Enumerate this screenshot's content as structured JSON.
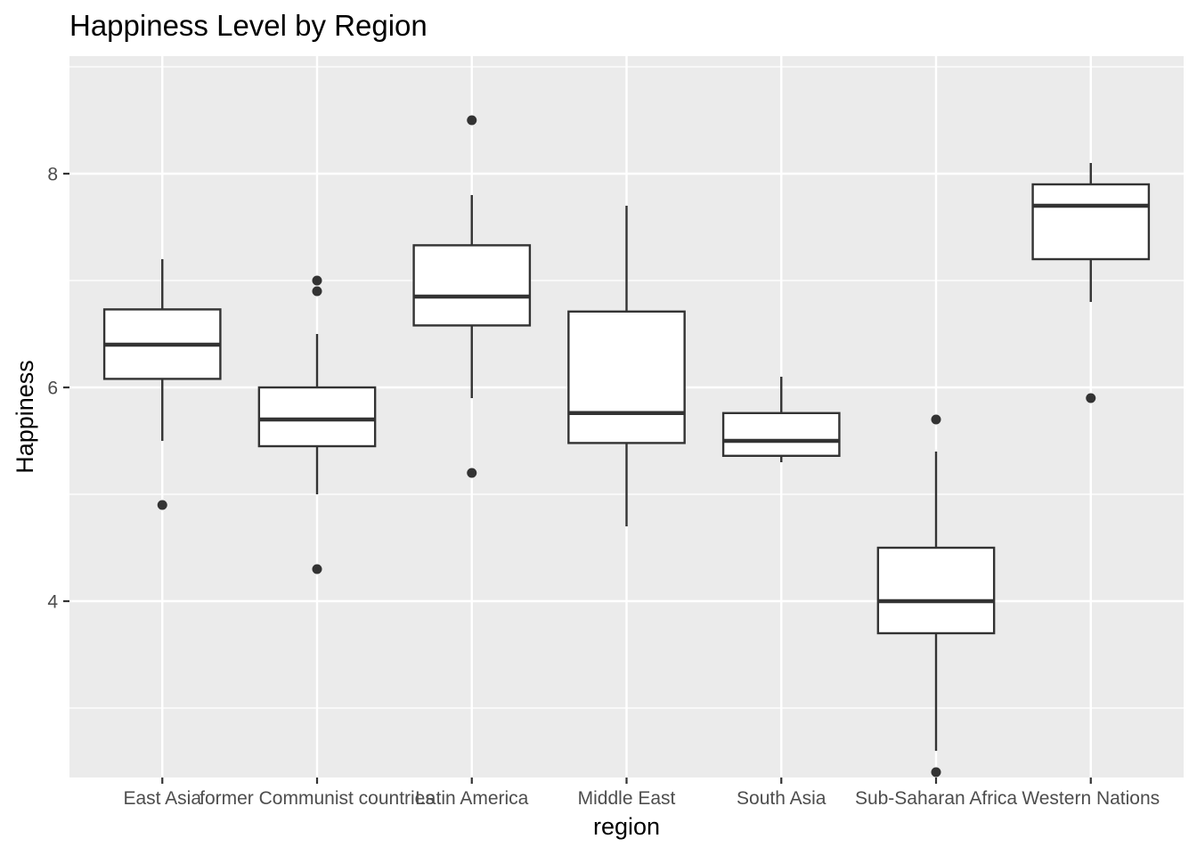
{
  "chart_data": {
    "type": "boxplot",
    "title": "Happiness Level by Region",
    "xlabel": "region",
    "ylabel": "Happiness",
    "ylim": [
      2.35,
      9.1
    ],
    "yticks": [
      4,
      6,
      8
    ],
    "grid": true,
    "categories": [
      "East Asia",
      "former Communist countries",
      "Latin America",
      "Middle East",
      "South Asia",
      "Sub-Saharan Africa",
      "Western Nations"
    ],
    "boxes": [
      {
        "category": "East Asia",
        "whisker_low": 5.5,
        "q1": 6.08,
        "median": 6.4,
        "q3": 6.73,
        "whisker_high": 7.2,
        "outliers": [
          4.9
        ]
      },
      {
        "category": "former Communist countries",
        "whisker_low": 5.0,
        "q1": 5.45,
        "median": 5.7,
        "q3": 6.0,
        "whisker_high": 6.5,
        "outliers": [
          4.3,
          6.9,
          7.0
        ]
      },
      {
        "category": "Latin America",
        "whisker_low": 5.9,
        "q1": 6.58,
        "median": 6.85,
        "q3": 7.33,
        "whisker_high": 7.8,
        "outliers": [
          5.2,
          8.5
        ]
      },
      {
        "category": "Middle East",
        "whisker_low": 4.7,
        "q1": 5.48,
        "median": 5.76,
        "q3": 6.71,
        "whisker_high": 7.7,
        "outliers": []
      },
      {
        "category": "South Asia",
        "whisker_low": 5.3,
        "q1": 5.36,
        "median": 5.5,
        "q3": 5.76,
        "whisker_high": 6.1,
        "outliers": []
      },
      {
        "category": "Sub-Saharan Africa",
        "whisker_low": 2.6,
        "q1": 3.7,
        "median": 4.0,
        "q3": 4.5,
        "whisker_high": 5.4,
        "outliers": [
          2.4,
          5.7
        ]
      },
      {
        "category": "Western Nations",
        "whisker_low": 6.8,
        "q1": 7.2,
        "median": 7.7,
        "q3": 7.9,
        "whisker_high": 8.1,
        "outliers": [
          5.9
        ]
      }
    ],
    "colors": {
      "panel_background": "#ebebeb",
      "grid": "#ffffff",
      "box_fill": "#ffffff",
      "box_stroke": "#333333",
      "point": "#333333",
      "tick_label": "#4d4d4d",
      "axis_tick": "#333333"
    }
  }
}
